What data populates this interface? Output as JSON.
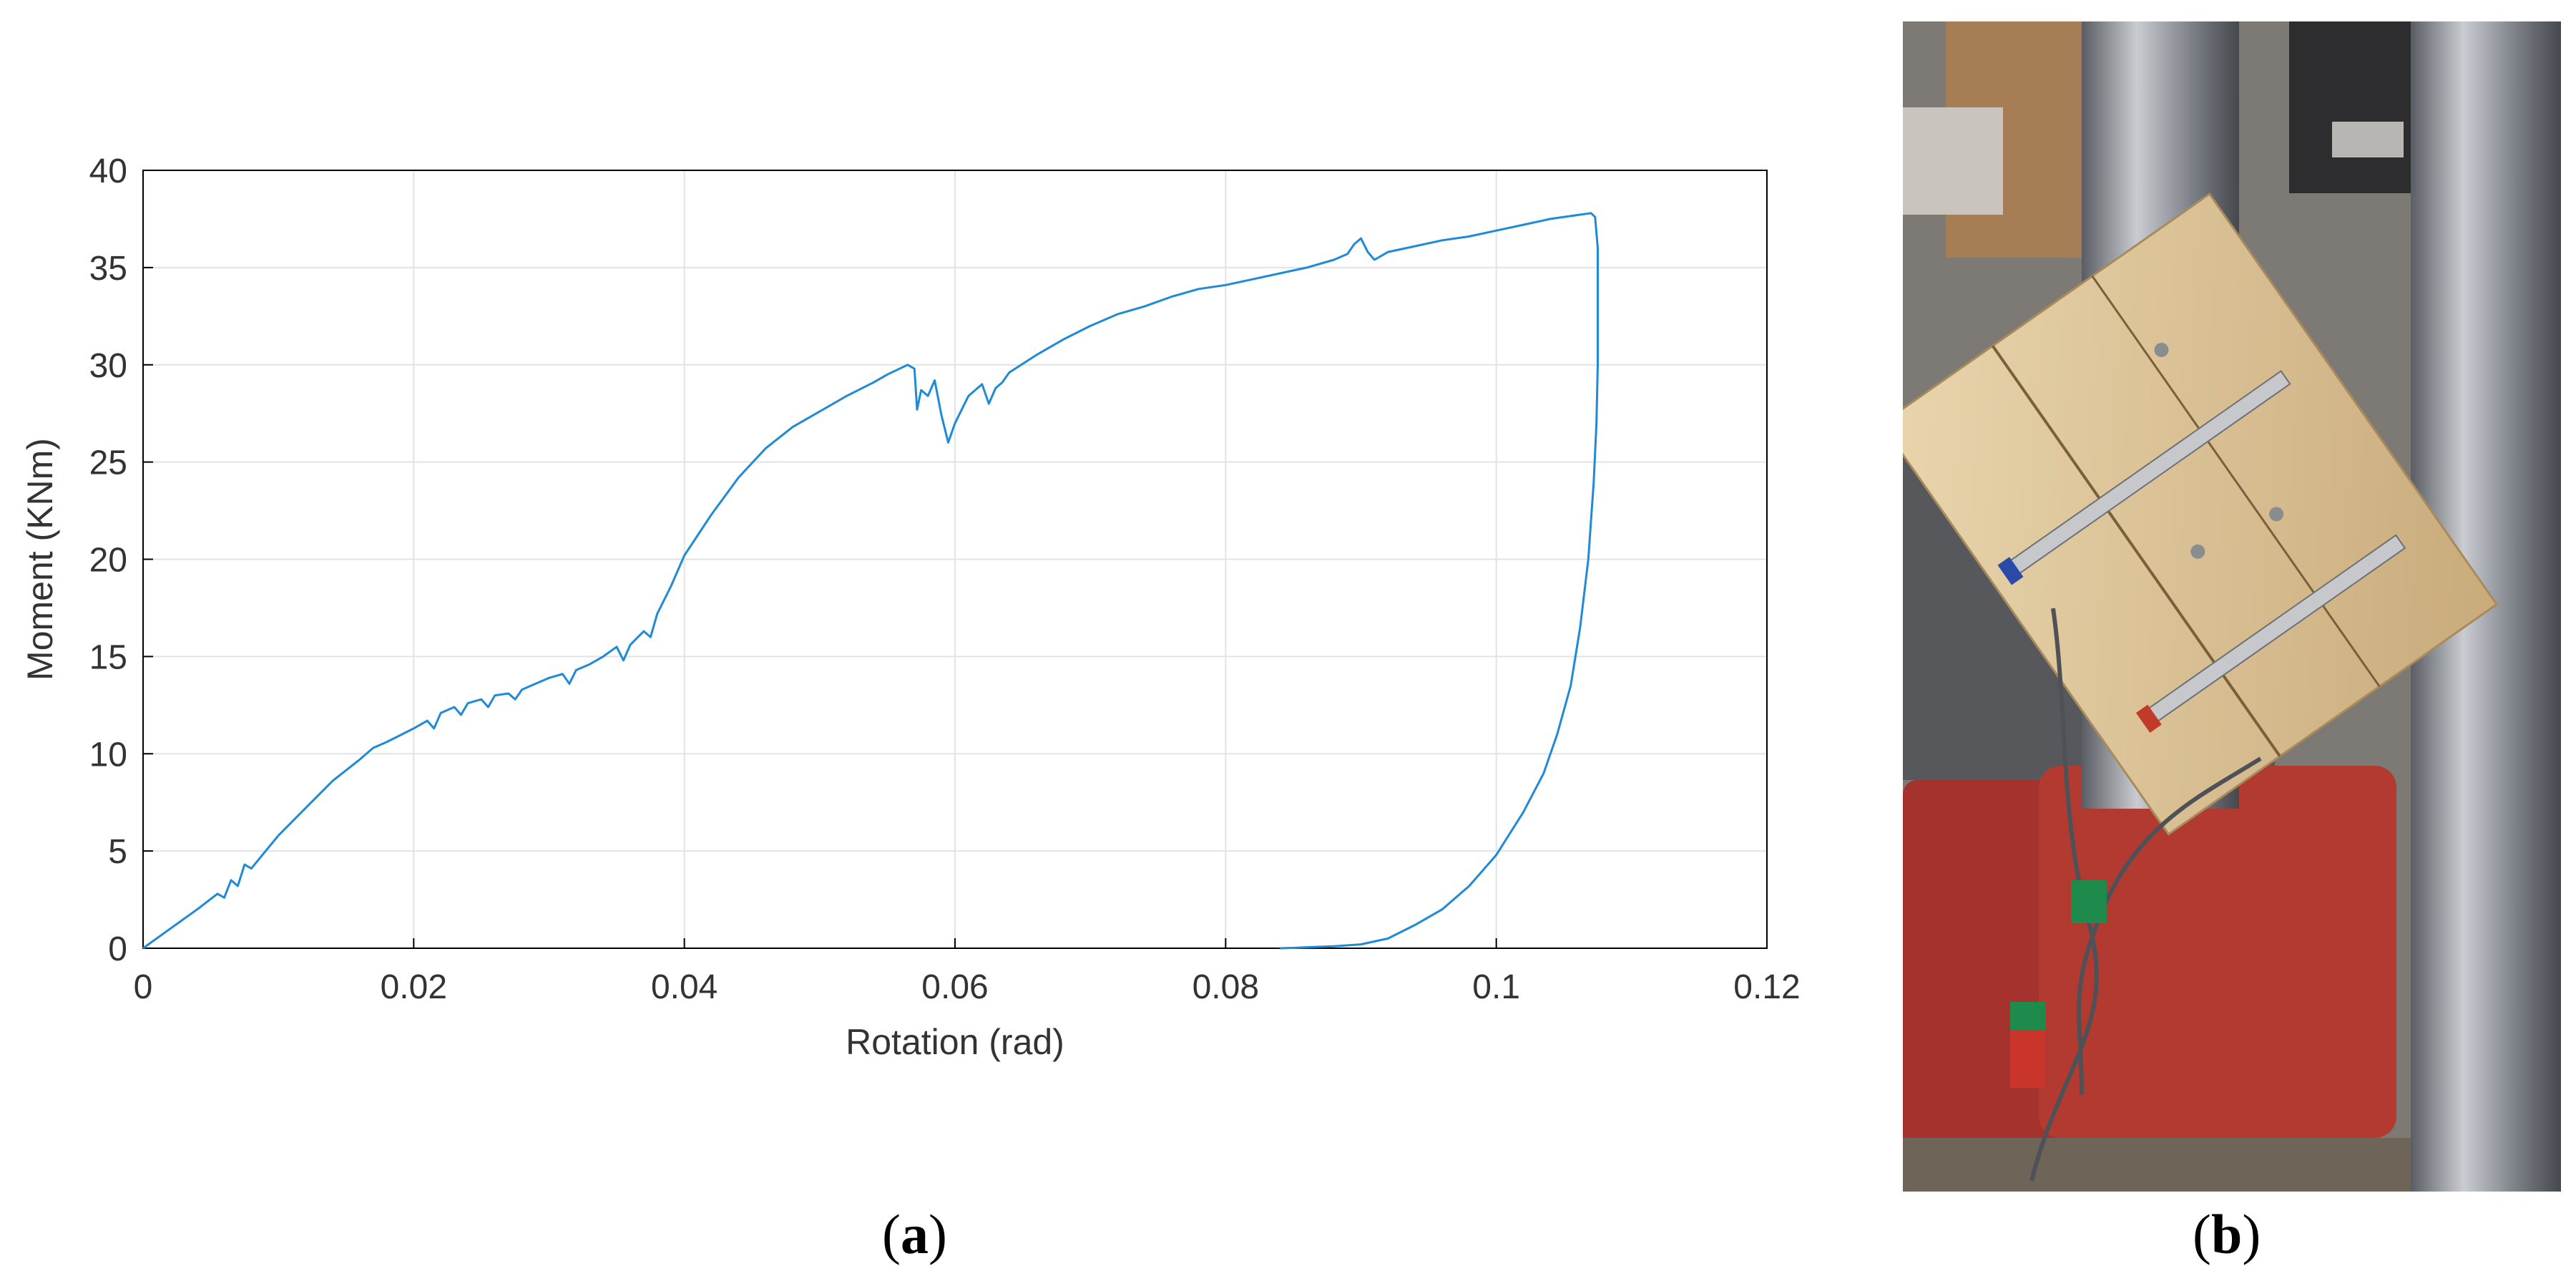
{
  "chart_data": {
    "type": "line",
    "xlabel": "Rotation (rad)",
    "ylabel": "Moment (KNm)",
    "xlim": [
      0,
      0.12
    ],
    "ylim": [
      0,
      40
    ],
    "xticks": [
      0,
      0.02,
      0.04,
      0.06,
      0.08,
      0.1,
      0.12
    ],
    "xtick_labels": [
      "0",
      "0.02",
      "0.04",
      "0.06",
      "0.08",
      "0.1",
      "0.12"
    ],
    "yticks": [
      0,
      5,
      10,
      15,
      20,
      25,
      30,
      35,
      40
    ],
    "ytick_labels": [
      "0",
      "5",
      "10",
      "15",
      "20",
      "25",
      "30",
      "35",
      "40"
    ],
    "grid": true,
    "series": [
      {
        "color": "#1f8ad6",
        "x": [
          0,
          0.002,
          0.004,
          0.0055,
          0.006,
          0.0065,
          0.007,
          0.0075,
          0.008,
          0.01,
          0.012,
          0.014,
          0.016,
          0.017,
          0.018,
          0.02,
          0.021,
          0.0215,
          0.022,
          0.023,
          0.0235,
          0.024,
          0.025,
          0.0255,
          0.026,
          0.027,
          0.0275,
          0.028,
          0.029,
          0.03,
          0.031,
          0.0315,
          0.032,
          0.033,
          0.034,
          0.035,
          0.0355,
          0.036,
          0.037,
          0.0375,
          0.038,
          0.039,
          0.04,
          0.042,
          0.044,
          0.046,
          0.048,
          0.05,
          0.052,
          0.054,
          0.055,
          0.0565,
          0.057,
          0.0572,
          0.0575,
          0.058,
          0.0585,
          0.059,
          0.0595,
          0.06,
          0.061,
          0.062,
          0.0625,
          0.063,
          0.0635,
          0.064,
          0.066,
          0.068,
          0.07,
          0.072,
          0.074,
          0.076,
          0.078,
          0.08,
          0.082,
          0.084,
          0.086,
          0.088,
          0.089,
          0.0895,
          0.09,
          0.0905,
          0.091,
          0.092,
          0.094,
          0.096,
          0.098,
          0.1,
          0.102,
          0.104,
          0.106,
          0.107,
          0.1073,
          0.1075,
          0.1075,
          0.1074,
          0.1072,
          0.1068,
          0.1062,
          0.1055,
          0.1045,
          0.1035,
          0.102,
          0.1,
          0.098,
          0.096,
          0.094,
          0.092,
          0.09,
          0.088,
          0.086,
          0.085,
          0.084
        ],
        "y": [
          0,
          1,
          2,
          2.8,
          2.6,
          3.5,
          3.2,
          4.3,
          4.1,
          5.8,
          7.2,
          8.6,
          9.7,
          10.3,
          10.6,
          11.3,
          11.7,
          11.3,
          12.1,
          12.4,
          12.0,
          12.6,
          12.8,
          12.4,
          13.0,
          13.1,
          12.8,
          13.3,
          13.6,
          13.9,
          14.1,
          13.6,
          14.3,
          14.6,
          15.0,
          15.5,
          14.8,
          15.6,
          16.3,
          16.0,
          17.2,
          18.6,
          20.2,
          22.3,
          24.2,
          25.7,
          26.8,
          27.6,
          28.4,
          29.1,
          29.5,
          30.0,
          29.8,
          27.7,
          28.7,
          28.4,
          29.2,
          27.4,
          26.0,
          27.0,
          28.4,
          29.0,
          28.0,
          28.8,
          29.1,
          29.6,
          30.5,
          31.3,
          32.0,
          32.6,
          33.0,
          33.5,
          33.9,
          34.1,
          34.4,
          34.7,
          35.0,
          35.4,
          35.7,
          36.2,
          36.5,
          35.8,
          35.4,
          35.8,
          36.1,
          36.4,
          36.6,
          36.9,
          37.2,
          37.5,
          37.7,
          37.8,
          37.6,
          36.0,
          30,
          27,
          24,
          20,
          16.5,
          13.5,
          11,
          9,
          7,
          4.8,
          3.2,
          2.0,
          1.2,
          0.5,
          0.2,
          0.1,
          0.05,
          0.02,
          0
        ]
      }
    ]
  },
  "captions": {
    "a_label": "a",
    "b_label": "b"
  }
}
